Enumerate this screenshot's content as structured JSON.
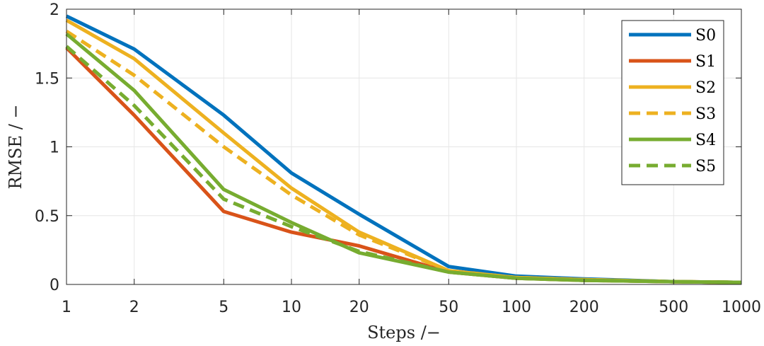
{
  "chart_data": {
    "type": "line",
    "xscale": "log",
    "xlabel": "Steps /−",
    "ylabel": "RMSE  /  −",
    "xlim": [
      1,
      1000
    ],
    "ylim": [
      0,
      2
    ],
    "xticks": [
      1,
      2,
      5,
      10,
      20,
      50,
      100,
      200,
      500,
      1000
    ],
    "xtick_labels": [
      "1",
      "2",
      "5",
      "10",
      "20",
      "50",
      "100",
      "200",
      "500",
      "1000"
    ],
    "yticks": [
      0,
      0.5,
      1,
      1.5,
      2
    ],
    "ytick_labels": [
      "0",
      "0.5",
      "1",
      "1.5",
      "2"
    ],
    "grid": true,
    "legend_position": "top-right",
    "x": [
      1,
      2,
      5,
      10,
      20,
      50,
      100,
      200,
      500,
      1000
    ],
    "series": [
      {
        "name": "S0",
        "color": "#0072BD",
        "dash": "solid",
        "values": [
          1.95,
          1.71,
          1.23,
          0.81,
          0.51,
          0.13,
          0.06,
          0.04,
          0.02,
          0.015
        ]
      },
      {
        "name": "S1",
        "color": "#D95319",
        "dash": "solid",
        "values": [
          1.72,
          1.23,
          0.53,
          0.38,
          0.28,
          0.09,
          0.045,
          0.03,
          0.02,
          0.015
        ]
      },
      {
        "name": "S2",
        "color": "#EDB120",
        "dash": "solid",
        "values": [
          1.92,
          1.64,
          1.1,
          0.7,
          0.38,
          0.1,
          0.05,
          0.035,
          0.02,
          0.015
        ]
      },
      {
        "name": "S3",
        "color": "#EDB120",
        "dash": "dashed",
        "values": [
          1.84,
          1.52,
          1.0,
          0.65,
          0.36,
          0.1,
          0.05,
          0.035,
          0.02,
          0.015
        ]
      },
      {
        "name": "S4",
        "color": "#77AC30",
        "dash": "solid",
        "values": [
          1.82,
          1.41,
          0.69,
          0.45,
          0.23,
          0.09,
          0.045,
          0.03,
          0.02,
          0.015
        ]
      },
      {
        "name": "S5",
        "color": "#77AC30",
        "dash": "dashed",
        "values": [
          1.73,
          1.3,
          0.62,
          0.42,
          0.24,
          0.09,
          0.045,
          0.03,
          0.02,
          0.015
        ]
      }
    ]
  }
}
